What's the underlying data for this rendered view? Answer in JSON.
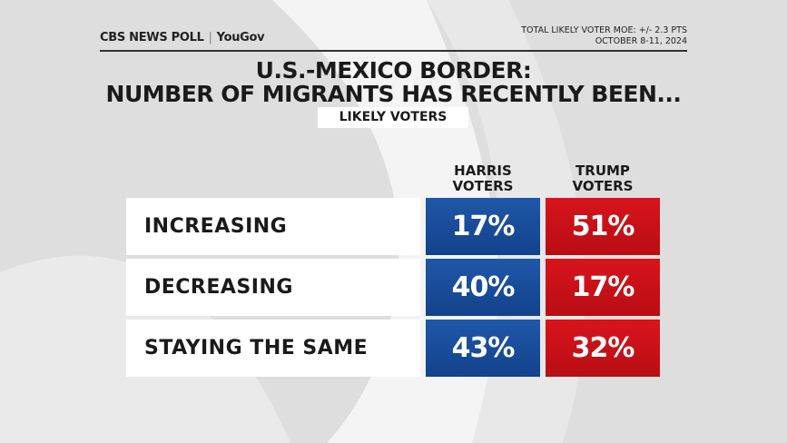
{
  "header": {
    "brand": "CBS NEWS POLL",
    "partner": "YouGov",
    "moe": "TOTAL LIKELY VOTER MOE: +/- 2.3 PTS",
    "dates": "OCTOBER 8-11, 2024"
  },
  "title": [
    "U.S.-MEXICO BORDER:",
    "NUMBER OF MIGRANTS HAS RECENTLY BEEN..."
  ],
  "subtitle": "LIKELY VOTERS",
  "table": {
    "columns": [
      [
        "HARRIS",
        "VOTERS"
      ],
      [
        "TRUMP",
        "VOTERS"
      ]
    ],
    "rows": [
      [
        "INCREASING",
        "17%",
        "51%"
      ],
      [
        "DECREASING",
        "40%",
        "17%"
      ],
      [
        "STAYING THE SAME",
        "43%",
        "32%"
      ]
    ]
  }
}
